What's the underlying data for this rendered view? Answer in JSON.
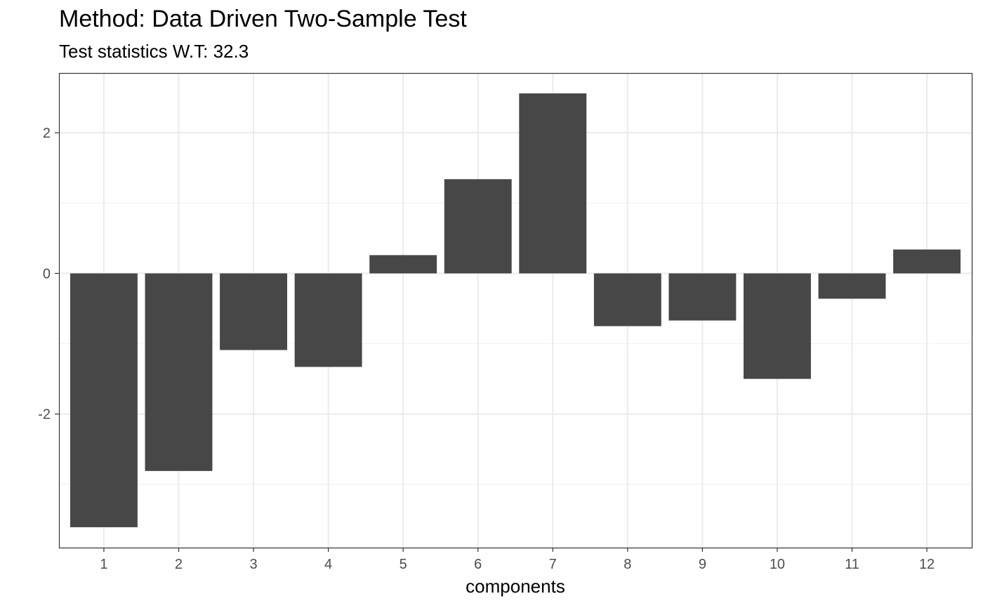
{
  "chart_data": {
    "type": "bar",
    "title": "Method: Data Driven Two-Sample Test",
    "subtitle": "Test statistics W.T: 32.3",
    "xlabel": "components",
    "ylabel": "",
    "categories": [
      "1",
      "2",
      "3",
      "4",
      "5",
      "6",
      "7",
      "8",
      "9",
      "10",
      "11",
      "12"
    ],
    "values": [
      -3.61,
      -2.81,
      -1.09,
      -1.33,
      0.26,
      1.34,
      2.56,
      -0.75,
      -0.67,
      -1.5,
      -0.36,
      0.34
    ],
    "ylim": [
      -3.9,
      2.85
    ],
    "yticks": [
      "-2",
      "0",
      "2"
    ],
    "ytick_values": [
      -2,
      0,
      2
    ],
    "grid": true,
    "legend": "none",
    "colors": {
      "bar": "#474747",
      "grid_major": "#ebebeb",
      "grid_minor": "#f2f2f2",
      "panel_border": "#333333"
    }
  }
}
